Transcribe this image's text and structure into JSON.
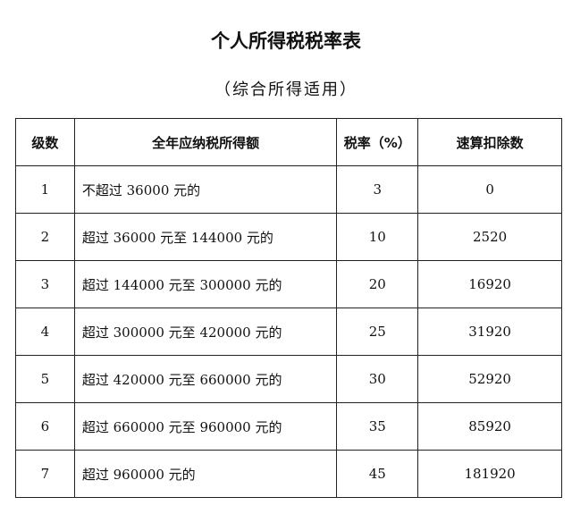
{
  "title": "个人所得税税率表",
  "subtitle": "（综合所得适用）",
  "table": {
    "headers": [
      "级数",
      "全年应纳税所得额",
      "税率（%）",
      "速算扣除数"
    ],
    "rows": [
      [
        "1",
        "不超过 36000 元的",
        "3",
        "0"
      ],
      [
        "2",
        "超过 36000 元至 144000 元的",
        "10",
        "2520"
      ],
      [
        "3",
        "超过 144000 元至 300000 元的",
        "20",
        "16920"
      ],
      [
        "4",
        "超过 300000 元至 420000 元的",
        "25",
        "31920"
      ],
      [
        "5",
        "超过 420000 元至 660000 元的",
        "30",
        "52920"
      ],
      [
        "6",
        "超过 660000 元至 960000 元的",
        "35",
        "85920"
      ],
      [
        "7",
        "超过 960000 元的",
        "45",
        "181920"
      ]
    ]
  }
}
